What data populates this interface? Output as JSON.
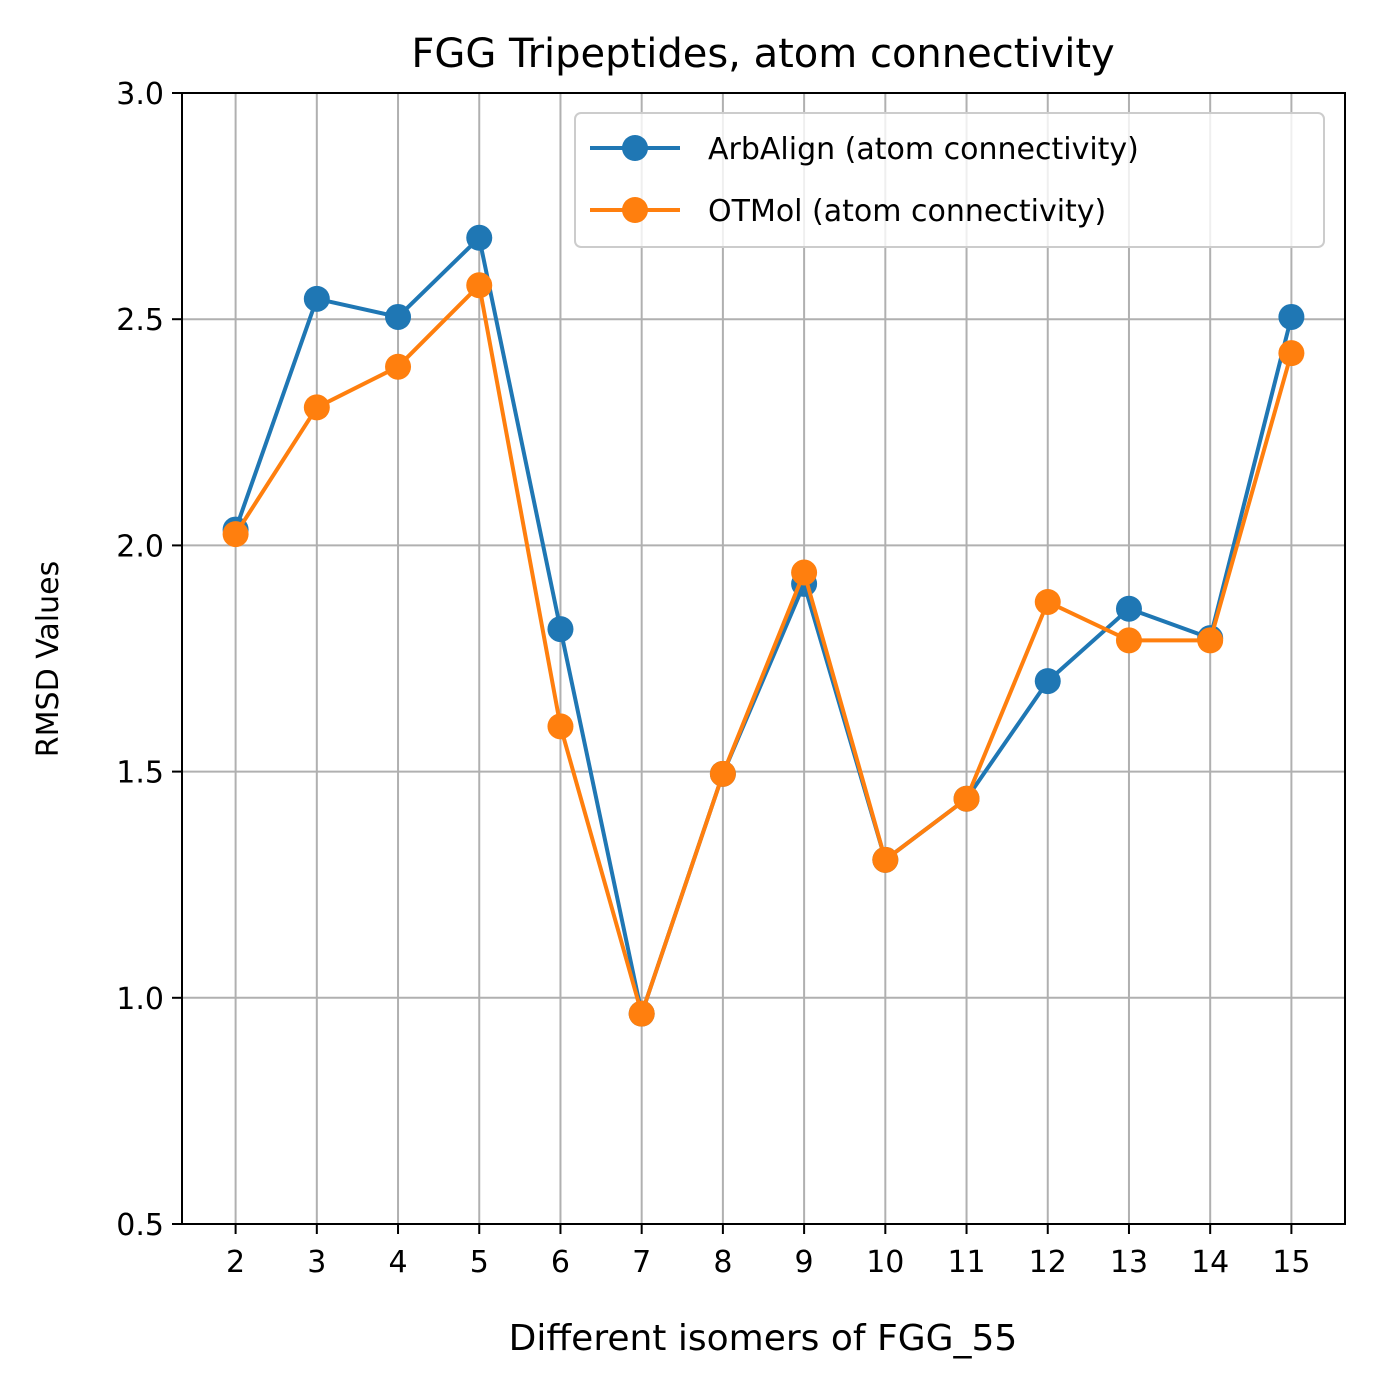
{
  "chart_data": {
    "type": "line",
    "title": "FGG Tripeptides, atom connectivity",
    "xlabel": "Different isomers of FGG_55",
    "ylabel": "RMSD Values",
    "x": [
      2,
      3,
      4,
      5,
      6,
      7,
      8,
      9,
      10,
      11,
      12,
      13,
      14,
      15
    ],
    "xlim": [
      1.34,
      15.66
    ],
    "ylim": [
      0.5,
      3.0
    ],
    "yticks": [
      "0.5",
      "1.0",
      "1.5",
      "2.0",
      "2.5",
      "3.0"
    ],
    "grid": true,
    "legend_position": "upper right",
    "series": [
      {
        "name": "ArbAlign (atom connectivity)",
        "color": "#1f77b4",
        "marker": "circle",
        "values": [
          2.035,
          2.545,
          2.505,
          2.68,
          1.815,
          0.965,
          1.495,
          1.915,
          1.305,
          1.44,
          1.7,
          1.86,
          1.795,
          2.505
        ]
      },
      {
        "name": "OTMol (atom connectivity)",
        "color": "#ff7f0e",
        "marker": "circle",
        "values": [
          2.025,
          2.305,
          2.395,
          2.575,
          1.6,
          0.965,
          1.495,
          1.94,
          1.305,
          1.44,
          1.875,
          1.79,
          1.79,
          2.425
        ]
      }
    ]
  }
}
